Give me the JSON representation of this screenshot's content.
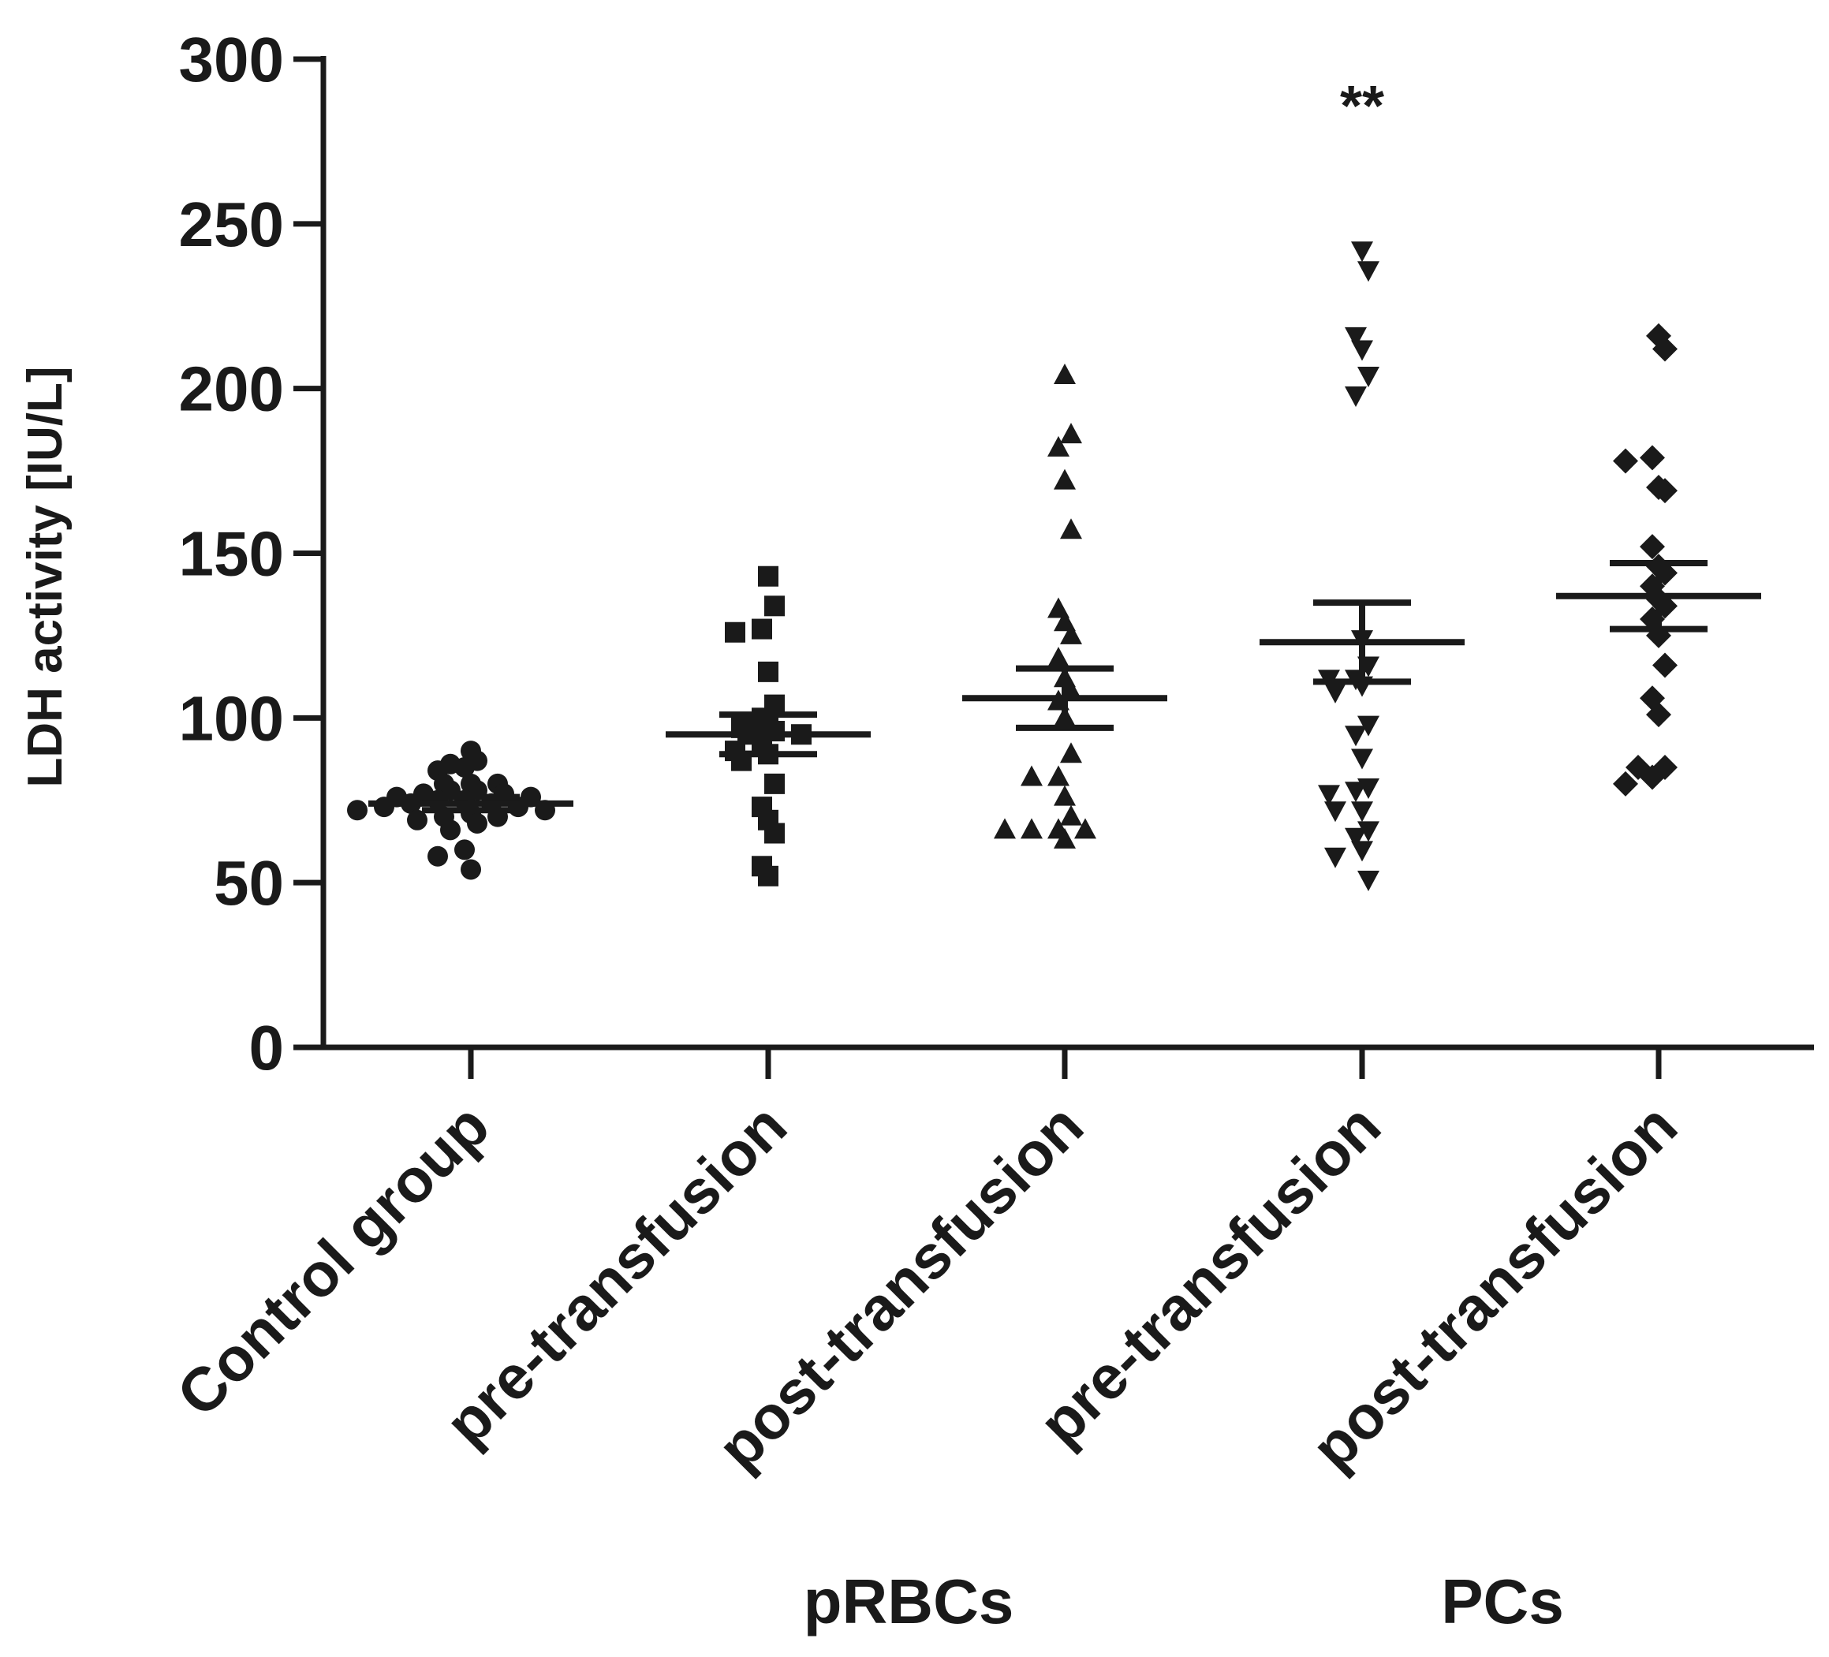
{
  "chart_data": {
    "type": "scatter",
    "ylabel": "LDH activity [IU/L]",
    "ylim": [
      0,
      300
    ],
    "yticks": [
      0,
      50,
      100,
      150,
      200,
      250,
      300
    ],
    "categories": [
      "Control group",
      "pre-transfusion",
      "post-transfusion",
      "pre-transfusion",
      "post-transfusion"
    ],
    "group_labels": [
      {
        "label": "pRBCs",
        "spans": [
          1,
          2
        ]
      },
      {
        "label": "PCs",
        "spans": [
          3,
          4
        ]
      }
    ],
    "annotations": [
      {
        "text": "**",
        "category_index": 3,
        "y": 290
      }
    ],
    "series": [
      {
        "name": "Control group",
        "marker": "circle",
        "mean": 74,
        "sem_low": 72,
        "sem_high": 76,
        "values": [
          90,
          87,
          86,
          85,
          84,
          80,
          80,
          80,
          78,
          78,
          77,
          77,
          76,
          76,
          75,
          75,
          74,
          74,
          73,
          73,
          72,
          72,
          71,
          70,
          70,
          69,
          68,
          66,
          60,
          58,
          54
        ]
      },
      {
        "name": "pRBCs pre-transfusion",
        "marker": "square",
        "mean": 95,
        "sem_low": 89,
        "sem_high": 101,
        "values": [
          143,
          134,
          127,
          126,
          114,
          104,
          100,
          98,
          97,
          96,
          95,
          95,
          92,
          90,
          89,
          87,
          80,
          73,
          69,
          65,
          55,
          52
        ]
      },
      {
        "name": "pRBCs post-transfusion",
        "marker": "triangle-up",
        "mean": 106,
        "sem_low": 97,
        "sem_high": 115,
        "values": [
          204,
          186,
          182,
          172,
          157,
          133,
          129,
          125,
          118,
          112,
          108,
          105,
          100,
          89,
          82,
          82,
          76,
          70,
          66,
          66,
          63,
          66,
          66
        ]
      },
      {
        "name": "PCs pre-transfusion",
        "marker": "triangle-down",
        "mean": 123,
        "sem_low": 111,
        "sem_high": 135,
        "values": [
          242,
          236,
          216,
          212,
          204,
          198,
          124,
          116,
          112,
          112,
          110,
          108,
          98,
          95,
          88,
          79,
          78,
          77,
          72,
          72,
          66,
          64,
          60,
          58,
          51
        ]
      },
      {
        "name": "PCs post-transfusion",
        "marker": "diamond",
        "mean": 137,
        "sem_low": 127,
        "sem_high": 147,
        "values": [
          216,
          212,
          179,
          178,
          170,
          169,
          152,
          146,
          144,
          140,
          136,
          134,
          130,
          125,
          116,
          106,
          101,
          85,
          85,
          82,
          80
        ]
      }
    ]
  }
}
